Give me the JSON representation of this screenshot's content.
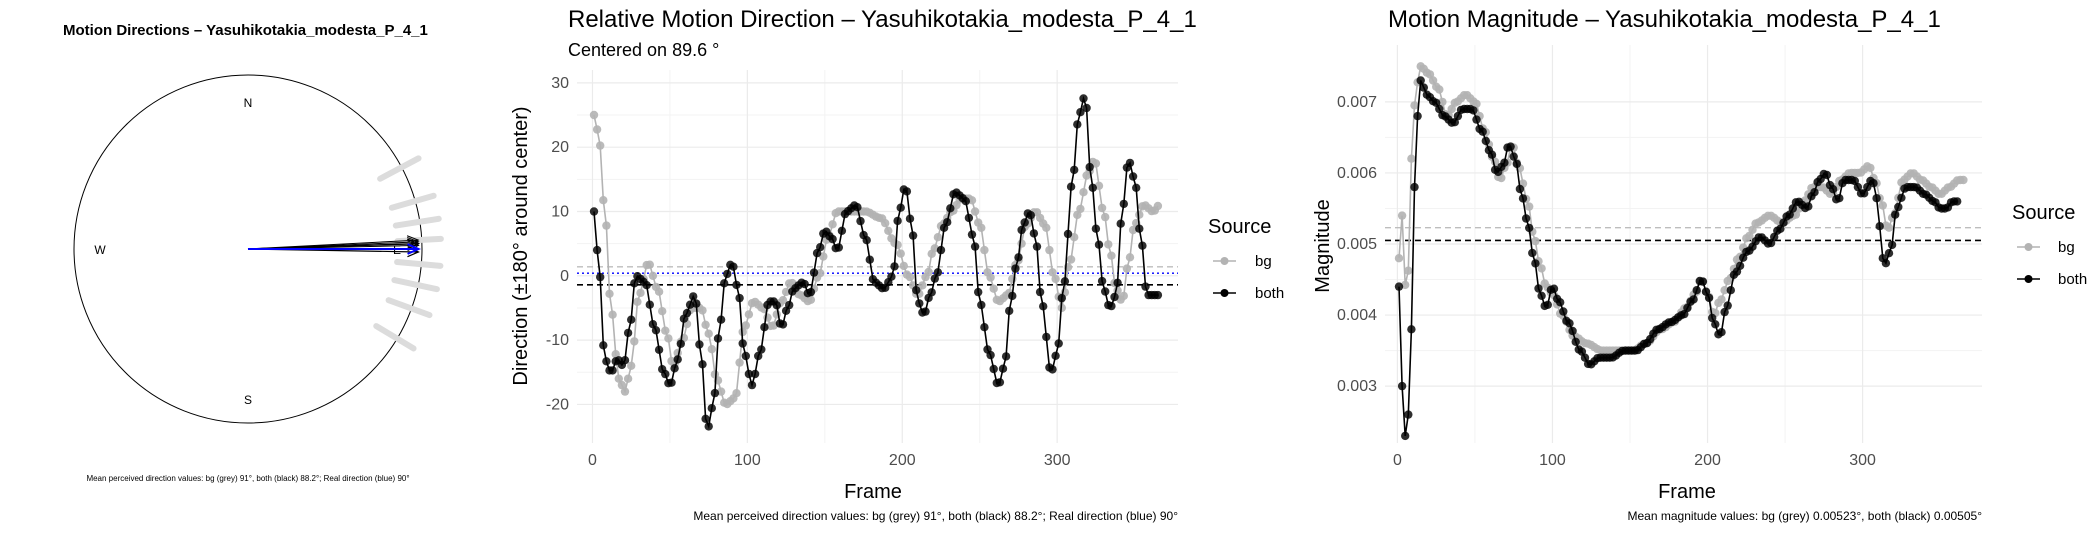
{
  "colors": {
    "bg": "#b3b3b3",
    "both": "#000000",
    "real": "#0000ff",
    "grid": "#ebebeb"
  },
  "chart_data": [
    {
      "type": "polar-arrows",
      "title": "Motion Directions – Yasuhikotakia_modesta_P_4_1",
      "compass": {
        "N": "N",
        "S": "S",
        "W": "W",
        "E": "E"
      },
      "mean_directions_deg": {
        "bg": 91,
        "both": 88.2,
        "real": 90
      },
      "caption": "Mean perceived direction values: bg (grey) 91°, both (black) 88.2°; Real direction (blue) 90°"
    },
    {
      "type": "line",
      "title": "Relative Motion Direction – Yasuhikotakia_modesta_P_4_1",
      "subtitle": "Centered on  89.6 °",
      "xlabel": "Frame",
      "ylabel": "Direction (±180° around center)",
      "xlim": [
        -10,
        378
      ],
      "ylim": [
        -26,
        32
      ],
      "xticks": [
        0,
        100,
        200,
        300
      ],
      "yticks": [
        -20,
        -10,
        0,
        10,
        20,
        30
      ],
      "legend_title": "Source",
      "series_names": [
        "bg",
        "both"
      ],
      "hlines": {
        "bg": 1.4,
        "both": -1.4,
        "real": 0.4
      },
      "keypoints": {
        "bg": [
          [
            1,
            25
          ],
          [
            4,
            22
          ],
          [
            8,
            10
          ],
          [
            12,
            -5
          ],
          [
            17,
            -16
          ],
          [
            21,
            -18
          ],
          [
            25,
            -14
          ],
          [
            30,
            -3
          ],
          [
            36,
            2
          ],
          [
            42,
            -2
          ],
          [
            48,
            -9
          ],
          [
            52,
            -14
          ],
          [
            58,
            -10
          ],
          [
            64,
            -5
          ],
          [
            70,
            -5
          ],
          [
            75,
            -9
          ],
          [
            80,
            -16
          ],
          [
            86,
            -20
          ],
          [
            92,
            -19
          ],
          [
            98,
            -8
          ],
          [
            104,
            -4
          ],
          [
            110,
            -5
          ],
          [
            116,
            -8
          ],
          [
            122,
            -4
          ],
          [
            128,
            -1
          ],
          [
            134,
            -3
          ],
          [
            140,
            -4
          ],
          [
            146,
            0
          ],
          [
            152,
            6
          ],
          [
            158,
            10
          ],
          [
            166,
            10
          ],
          [
            176,
            10
          ],
          [
            186,
            9
          ],
          [
            196,
            5
          ],
          [
            204,
            0
          ],
          [
            210,
            -3
          ],
          [
            216,
            0
          ],
          [
            220,
            4
          ],
          [
            226,
            8
          ],
          [
            232,
            10
          ],
          [
            238,
            12
          ],
          [
            244,
            12
          ],
          [
            250,
            8
          ],
          [
            256,
            0
          ],
          [
            262,
            -4
          ],
          [
            268,
            -3
          ],
          [
            274,
            2
          ],
          [
            280,
            8
          ],
          [
            286,
            10
          ],
          [
            292,
            8
          ],
          [
            298,
            0
          ],
          [
            303,
            -5
          ],
          [
            308,
            2
          ],
          [
            314,
            10
          ],
          [
            320,
            16
          ],
          [
            324,
            18
          ],
          [
            330,
            10
          ],
          [
            334,
            4
          ],
          [
            338,
            -2
          ],
          [
            342,
            -4
          ],
          [
            346,
            2
          ],
          [
            350,
            8
          ],
          [
            356,
            11
          ],
          [
            362,
            10
          ],
          [
            366,
            11
          ]
        ],
        "both": [
          [
            1,
            10
          ],
          [
            4,
            2
          ],
          [
            8,
            -13
          ],
          [
            12,
            -15
          ],
          [
            16,
            -13
          ],
          [
            20,
            -14
          ],
          [
            24,
            -8
          ],
          [
            28,
            0
          ],
          [
            34,
            -1
          ],
          [
            40,
            -8
          ],
          [
            46,
            -15
          ],
          [
            50,
            -17
          ],
          [
            55,
            -13
          ],
          [
            60,
            -6
          ],
          [
            66,
            -3
          ],
          [
            70,
            -12
          ],
          [
            74,
            -24
          ],
          [
            78,
            -20
          ],
          [
            82,
            -8
          ],
          [
            86,
            0
          ],
          [
            90,
            2
          ],
          [
            94,
            -2
          ],
          [
            98,
            -12
          ],
          [
            103,
            -17
          ],
          [
            108,
            -12
          ],
          [
            114,
            -4
          ],
          [
            118,
            -4
          ],
          [
            122,
            -8
          ],
          [
            126,
            -5
          ],
          [
            130,
            -2
          ],
          [
            136,
            -1
          ],
          [
            140,
            -3
          ],
          [
            146,
            4
          ],
          [
            150,
            7
          ],
          [
            154,
            6
          ],
          [
            158,
            4
          ],
          [
            164,
            10
          ],
          [
            170,
            11
          ],
          [
            176,
            6
          ],
          [
            182,
            -1
          ],
          [
            188,
            -2
          ],
          [
            194,
            0
          ],
          [
            198,
            10
          ],
          [
            202,
            14
          ],
          [
            206,
            8
          ],
          [
            210,
            -4
          ],
          [
            214,
            -6
          ],
          [
            218,
            -3
          ],
          [
            222,
            0
          ],
          [
            228,
            8
          ],
          [
            234,
            13
          ],
          [
            240,
            12
          ],
          [
            246,
            6
          ],
          [
            250,
            -4
          ],
          [
            256,
            -12
          ],
          [
            262,
            -17
          ],
          [
            266,
            -14
          ],
          [
            270,
            -4
          ],
          [
            274,
            2
          ],
          [
            278,
            8
          ],
          [
            282,
            10
          ],
          [
            286,
            6
          ],
          [
            290,
            -4
          ],
          [
            296,
            -15
          ],
          [
            300,
            -12
          ],
          [
            304,
            -2
          ],
          [
            310,
            15
          ],
          [
            314,
            25
          ],
          [
            318,
            28
          ],
          [
            322,
            15
          ],
          [
            326,
            6
          ],
          [
            330,
            -2
          ],
          [
            334,
            -5
          ],
          [
            338,
            -3
          ],
          [
            342,
            10
          ],
          [
            346,
            18
          ],
          [
            350,
            15
          ],
          [
            354,
            6
          ],
          [
            358,
            -3
          ],
          [
            362,
            -3
          ],
          [
            366,
            -3
          ]
        ]
      },
      "caption": "Mean perceived direction values: bg (grey) 91°, both (black) 88.2°; Real direction (blue) 90°"
    },
    {
      "type": "line",
      "title": "Motion Magnitude – Yasuhikotakia_modesta_P_4_1",
      "xlabel": "Frame",
      "ylabel": "Magnitude",
      "xlim": [
        -8,
        377
      ],
      "ylim": [
        0.0022,
        0.0078
      ],
      "xticks": [
        0,
        100,
        200,
        300
      ],
      "yticks": [
        0.003,
        0.004,
        0.005,
        0.006,
        0.007
      ],
      "ytick_labels": [
        "0.003",
        "0.004",
        "0.005",
        "0.006",
        "0.007"
      ],
      "legend_title": "Source",
      "series_names": [
        "bg",
        "both"
      ],
      "hlines": {
        "bg": 0.00523,
        "both": 0.00505
      },
      "keypoints": {
        "bg": [
          [
            1,
            0.0048
          ],
          [
            3,
            0.0054
          ],
          [
            6,
            0.0041
          ],
          [
            9,
            0.0062
          ],
          [
            12,
            0.0072
          ],
          [
            15,
            0.0075
          ],
          [
            20,
            0.0074
          ],
          [
            26,
            0.0072
          ],
          [
            32,
            0.0068
          ],
          [
            38,
            0.007
          ],
          [
            44,
            0.0071
          ],
          [
            50,
            0.007
          ],
          [
            56,
            0.0066
          ],
          [
            62,
            0.0062
          ],
          [
            66,
            0.0059
          ],
          [
            70,
            0.0061
          ],
          [
            74,
            0.0064
          ],
          [
            78,
            0.0061
          ],
          [
            84,
            0.0056
          ],
          [
            88,
            0.0051
          ],
          [
            92,
            0.0047
          ],
          [
            96,
            0.0044
          ],
          [
            100,
            0.0043
          ],
          [
            106,
            0.004
          ],
          [
            114,
            0.0037
          ],
          [
            122,
            0.0036
          ],
          [
            132,
            0.0035
          ],
          [
            142,
            0.0035
          ],
          [
            152,
            0.0035
          ],
          [
            160,
            0.0036
          ],
          [
            170,
            0.0038
          ],
          [
            178,
            0.0039
          ],
          [
            186,
            0.0041
          ],
          [
            192,
            0.0043
          ],
          [
            196,
            0.0045
          ],
          [
            200,
            0.0043
          ],
          [
            204,
            0.004
          ],
          [
            208,
            0.0042
          ],
          [
            214,
            0.0045
          ],
          [
            220,
            0.0048
          ],
          [
            226,
            0.0051
          ],
          [
            232,
            0.0053
          ],
          [
            240,
            0.0054
          ],
          [
            248,
            0.0053
          ],
          [
            256,
            0.0054
          ],
          [
            262,
            0.0056
          ],
          [
            268,
            0.0058
          ],
          [
            274,
            0.0058
          ],
          [
            280,
            0.0057
          ],
          [
            286,
            0.0059
          ],
          [
            292,
            0.006
          ],
          [
            298,
            0.006
          ],
          [
            304,
            0.0061
          ],
          [
            308,
            0.0059
          ],
          [
            312,
            0.0056
          ],
          [
            316,
            0.0052
          ],
          [
            320,
            0.0054
          ],
          [
            326,
            0.0059
          ],
          [
            332,
            0.006
          ],
          [
            338,
            0.0059
          ],
          [
            344,
            0.0058
          ],
          [
            350,
            0.0057
          ],
          [
            356,
            0.0058
          ],
          [
            362,
            0.0059
          ],
          [
            365,
            0.0059
          ]
        ],
        "both": [
          [
            1,
            0.0044
          ],
          [
            3,
            0.003
          ],
          [
            5,
            0.0023
          ],
          [
            7,
            0.0026
          ],
          [
            9,
            0.0038
          ],
          [
            11,
            0.0058
          ],
          [
            13,
            0.0068
          ],
          [
            15,
            0.0073
          ],
          [
            19,
            0.0071
          ],
          [
            24,
            0.007
          ],
          [
            30,
            0.0068
          ],
          [
            36,
            0.0067
          ],
          [
            42,
            0.0069
          ],
          [
            48,
            0.0069
          ],
          [
            54,
            0.0066
          ],
          [
            60,
            0.0063
          ],
          [
            64,
            0.006
          ],
          [
            68,
            0.0061
          ],
          [
            72,
            0.0064
          ],
          [
            76,
            0.0062
          ],
          [
            80,
            0.0057
          ],
          [
            84,
            0.0053
          ],
          [
            88,
            0.0048
          ],
          [
            92,
            0.0043
          ],
          [
            96,
            0.0041
          ],
          [
            100,
            0.0044
          ],
          [
            104,
            0.0042
          ],
          [
            110,
            0.0039
          ],
          [
            118,
            0.0035
          ],
          [
            124,
            0.0033
          ],
          [
            130,
            0.0034
          ],
          [
            138,
            0.0034
          ],
          [
            146,
            0.0035
          ],
          [
            154,
            0.0035
          ],
          [
            160,
            0.0036
          ],
          [
            168,
            0.0038
          ],
          [
            176,
            0.0039
          ],
          [
            184,
            0.004
          ],
          [
            190,
            0.0042
          ],
          [
            196,
            0.0045
          ],
          [
            200,
            0.0043
          ],
          [
            204,
            0.0039
          ],
          [
            208,
            0.0037
          ],
          [
            212,
            0.0041
          ],
          [
            218,
            0.0046
          ],
          [
            226,
            0.0049
          ],
          [
            234,
            0.0051
          ],
          [
            240,
            0.005
          ],
          [
            246,
            0.0052
          ],
          [
            252,
            0.0054
          ],
          [
            258,
            0.0056
          ],
          [
            264,
            0.0055
          ],
          [
            268,
            0.0057
          ],
          [
            272,
            0.0059
          ],
          [
            276,
            0.006
          ],
          [
            280,
            0.0058
          ],
          [
            284,
            0.0056
          ],
          [
            288,
            0.0059
          ],
          [
            294,
            0.0059
          ],
          [
            300,
            0.0057
          ],
          [
            306,
            0.0059
          ],
          [
            310,
            0.0056
          ],
          [
            312,
            0.0049
          ],
          [
            314,
            0.0047
          ],
          [
            318,
            0.0049
          ],
          [
            322,
            0.0055
          ],
          [
            328,
            0.0058
          ],
          [
            334,
            0.0058
          ],
          [
            340,
            0.0057
          ],
          [
            346,
            0.0056
          ],
          [
            350,
            0.0055
          ],
          [
            354,
            0.0055
          ],
          [
            358,
            0.0056
          ],
          [
            362,
            0.0056
          ]
        ]
      },
      "caption": "Mean magnitude values: bg (grey) 0.00523°, both (black) 0.00505°"
    }
  ]
}
